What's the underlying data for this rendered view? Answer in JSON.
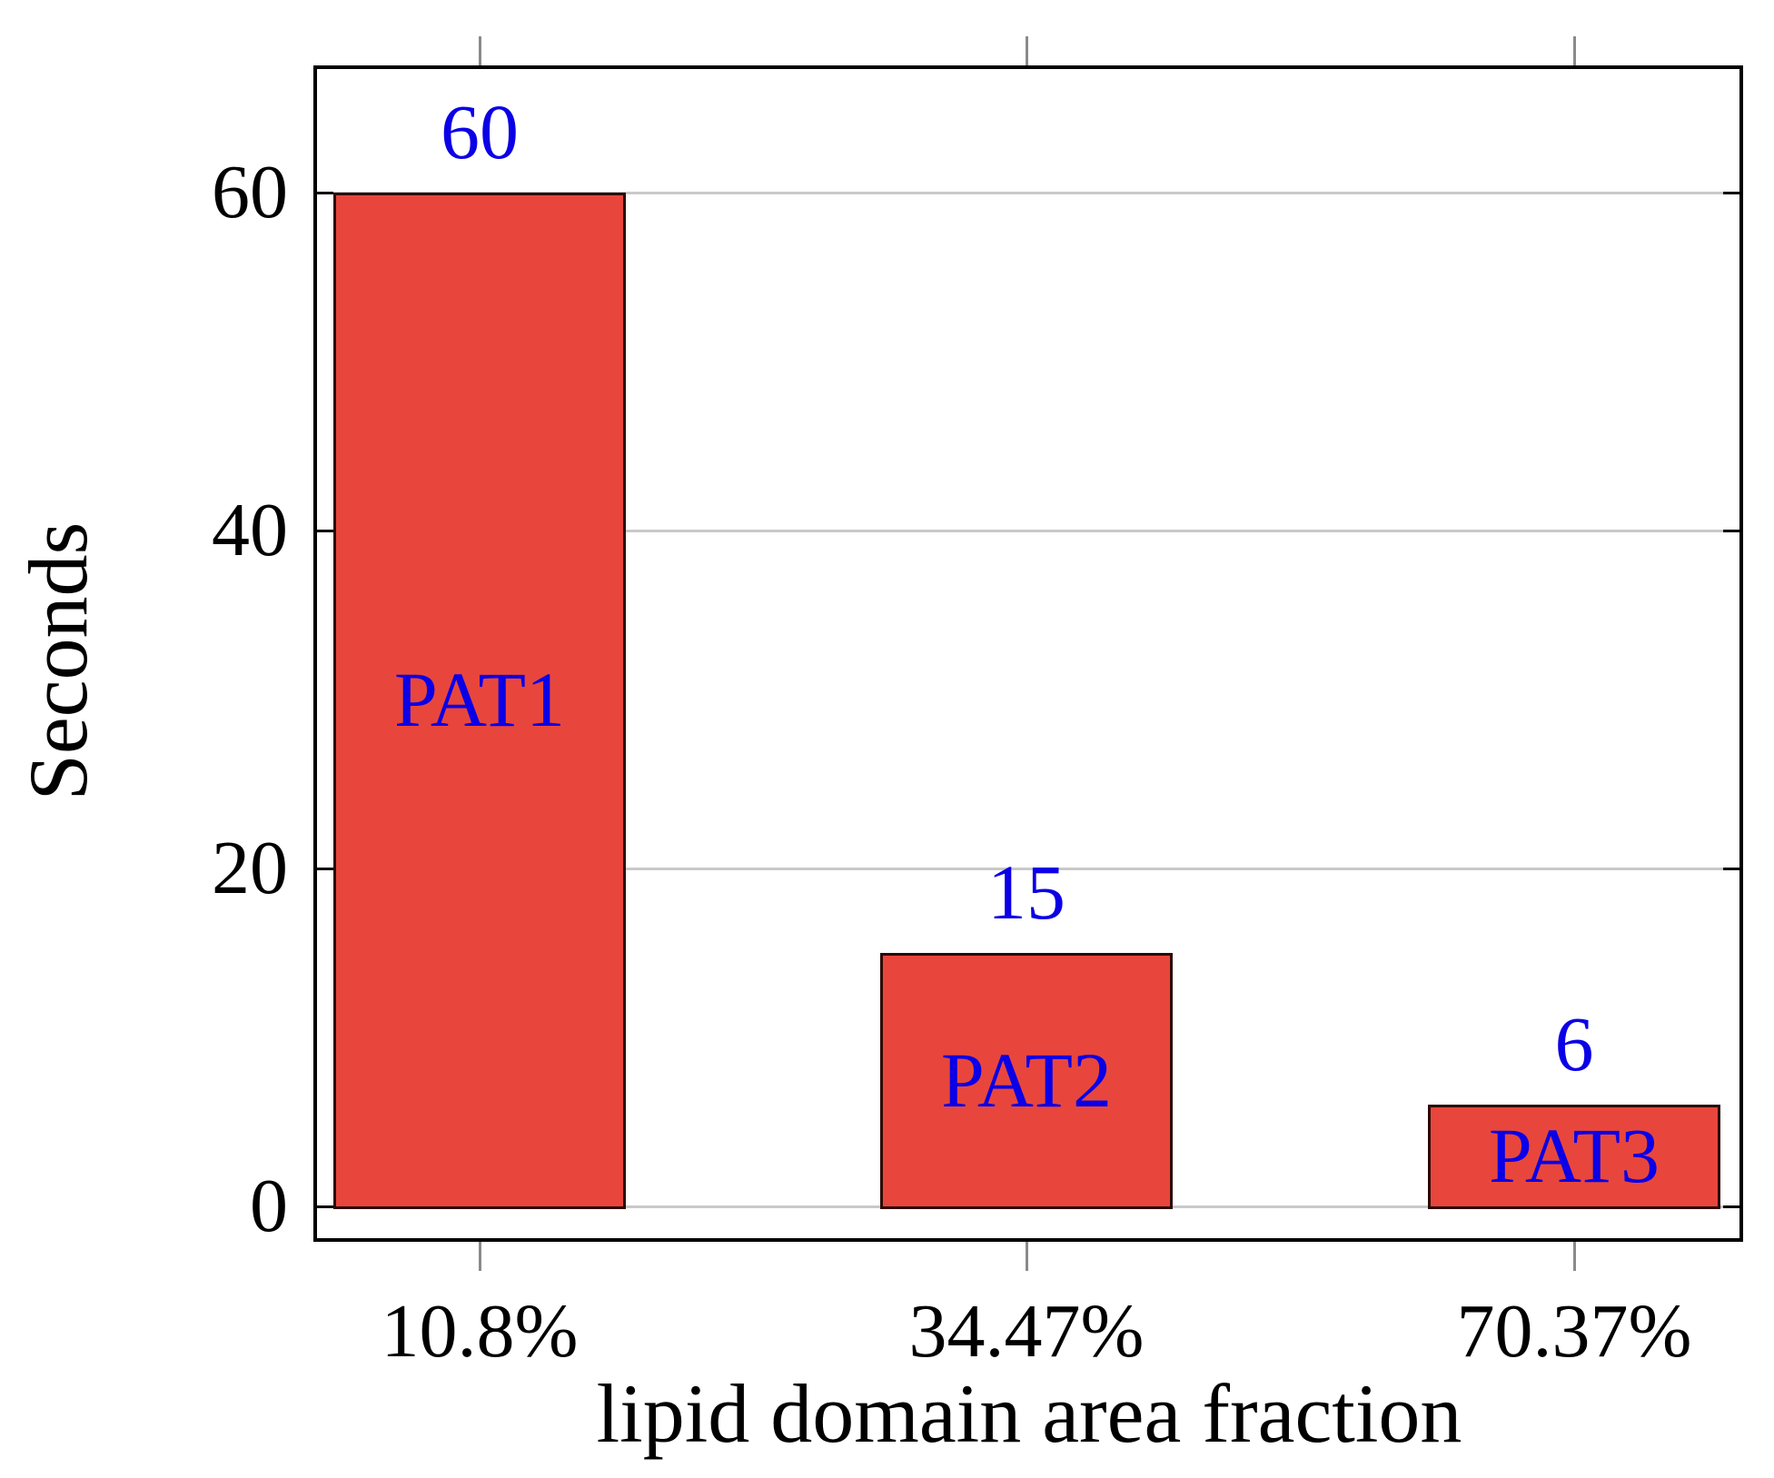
{
  "figure": {
    "background": "#ffffff"
  },
  "chart_data": {
    "type": "bar",
    "title": "",
    "xlabel": "lipid domain area fraction",
    "ylabel": "Seconds",
    "categories": [
      "10.8%",
      "34.47%",
      "70.37%"
    ],
    "values": [
      60,
      15,
      6
    ],
    "value_labels": [
      "60",
      "15",
      "6"
    ],
    "bar_text_labels": [
      "PAT1",
      "PAT2",
      "PAT3"
    ],
    "yticks": [
      0,
      20,
      40,
      60
    ],
    "ytick_labels": [
      "0",
      "20",
      "40",
      "60"
    ],
    "ylim": [
      -1.9,
      67.3
    ],
    "grid": "horizontal",
    "legend_position": "none",
    "colors": {
      "bar_fill": "#e8463c",
      "bar_border": "#2b0a06",
      "annotation_blue": "#0b00e6",
      "gridline": "#c9c9c9",
      "axis_border": "#000000",
      "outside_tick": "#8a8a8a",
      "text": "#000000",
      "background": "#ffffff"
    }
  }
}
